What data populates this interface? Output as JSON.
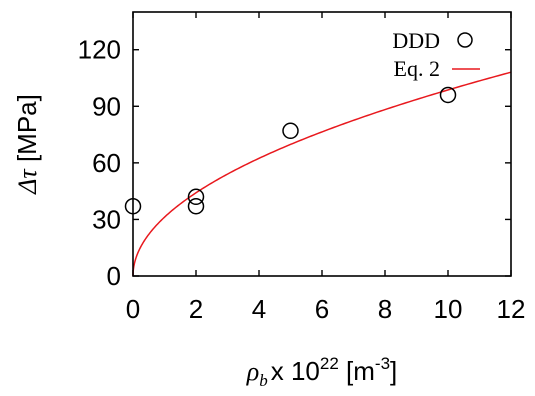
{
  "chart_data": {
    "type": "scatter",
    "xlim": [
      0,
      12
    ],
    "ylim": [
      0,
      140
    ],
    "xticks": [
      0,
      2,
      4,
      6,
      8,
      10,
      12
    ],
    "yticks": [
      0,
      30,
      60,
      90,
      120
    ],
    "xlabel": {
      "symbol": "ρ",
      "subscript": "b",
      "rest": "x 10",
      "exponent": "22",
      "unit_open": " [m",
      "unit_exponent": "-3",
      "unit_close": "]"
    },
    "ylabel": {
      "symbol": "Δτ",
      "rest": " [MPa]"
    },
    "legend": {
      "position": "top-right",
      "entries": [
        "DDD",
        "Eq. 2"
      ]
    },
    "series": [
      {
        "name": "DDD",
        "type": "scatter",
        "marker": "open-circle",
        "color": "#000000",
        "points": [
          {
            "x": 0,
            "y": 37
          },
          {
            "x": 2,
            "y": 42
          },
          {
            "x": 2,
            "y": 37
          },
          {
            "x": 5,
            "y": 77
          },
          {
            "x": 10,
            "y": 96
          }
        ]
      },
      {
        "name": "Eq. 2",
        "type": "line",
        "color": "#e8191e",
        "formula": "y = 31.2 * sqrt(x)"
      }
    ]
  }
}
